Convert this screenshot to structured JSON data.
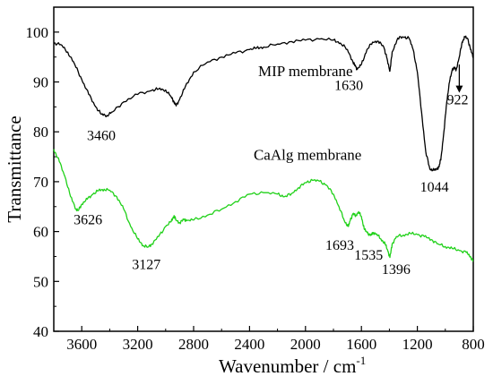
{
  "chart_data": {
    "type": "line",
    "xlabel": "Wavenumber / cm",
    "xlabel_sup": "-1",
    "ylabel": "Transmittance",
    "xlim": [
      3800,
      800
    ],
    "ylim": [
      40,
      105
    ],
    "x_reversed": true,
    "x_ticks": [
      3600,
      3200,
      2800,
      2400,
      2000,
      1600,
      1200,
      800
    ],
    "y_ticks": [
      40,
      50,
      60,
      70,
      80,
      90,
      100
    ],
    "grid": false,
    "series": [
      {
        "name": "MIP membrane",
        "color": "#000000",
        "points": [
          [
            3800,
            97.8
          ],
          [
            3750,
            97.5
          ],
          [
            3700,
            96
          ],
          [
            3650,
            93.5
          ],
          [
            3600,
            90.5
          ],
          [
            3550,
            87.5
          ],
          [
            3500,
            85
          ],
          [
            3460,
            83.5
          ],
          [
            3420,
            83.3
          ],
          [
            3380,
            84
          ],
          [
            3300,
            86
          ],
          [
            3200,
            87.5
          ],
          [
            3100,
            88.3
          ],
          [
            3050,
            88.6
          ],
          [
            3000,
            88.4
          ],
          [
            2960,
            87
          ],
          [
            2940,
            86
          ],
          [
            2925,
            85.2
          ],
          [
            2900,
            86.5
          ],
          [
            2860,
            89
          ],
          [
            2800,
            92
          ],
          [
            2700,
            94
          ],
          [
            2600,
            95
          ],
          [
            2500,
            95.8
          ],
          [
            2400,
            96.5
          ],
          [
            2350,
            96.8
          ],
          [
            2300,
            97
          ],
          [
            2200,
            97.6
          ],
          [
            2100,
            98.1
          ],
          [
            2000,
            98.4
          ],
          [
            1900,
            98.6
          ],
          [
            1800,
            98.4
          ],
          [
            1750,
            97.8
          ],
          [
            1700,
            96.5
          ],
          [
            1660,
            94
          ],
          [
            1640,
            93
          ],
          [
            1630,
            92.5
          ],
          [
            1600,
            93.5
          ],
          [
            1560,
            96.5
          ],
          [
            1520,
            98
          ],
          [
            1480,
            98.2
          ],
          [
            1440,
            97
          ],
          [
            1420,
            95
          ],
          [
            1400,
            92.5
          ],
          [
            1396,
            92.2
          ],
          [
            1380,
            96
          ],
          [
            1340,
            98.8
          ],
          [
            1300,
            99
          ],
          [
            1260,
            98.8
          ],
          [
            1230,
            96.5
          ],
          [
            1200,
            92
          ],
          [
            1170,
            84
          ],
          [
            1140,
            76
          ],
          [
            1110,
            72.5
          ],
          [
            1080,
            72.3
          ],
          [
            1060,
            72.5
          ],
          [
            1044,
            73
          ],
          [
            1030,
            75
          ],
          [
            1010,
            80
          ],
          [
            990,
            86
          ],
          [
            970,
            90
          ],
          [
            950,
            92.5
          ],
          [
            935,
            92.8
          ],
          [
            922,
            92.5
          ],
          [
            900,
            95
          ],
          [
            880,
            98
          ],
          [
            860,
            99
          ],
          [
            840,
            98.7
          ],
          [
            820,
            96.5
          ],
          [
            800,
            95
          ]
        ]
      },
      {
        "name": "CaAlg membrane",
        "color": "#21d11a",
        "points": [
          [
            3800,
            76.5
          ],
          [
            3760,
            74
          ],
          [
            3720,
            71
          ],
          [
            3680,
            67
          ],
          [
            3640,
            64.5
          ],
          [
            3626,
            64.2
          ],
          [
            3600,
            65.5
          ],
          [
            3560,
            66.5
          ],
          [
            3520,
            67.5
          ],
          [
            3480,
            68.2
          ],
          [
            3440,
            68.5
          ],
          [
            3400,
            68.3
          ],
          [
            3350,
            67
          ],
          [
            3300,
            64.5
          ],
          [
            3250,
            61
          ],
          [
            3200,
            58.5
          ],
          [
            3160,
            57.2
          ],
          [
            3127,
            56.9
          ],
          [
            3100,
            57.5
          ],
          [
            3050,
            59
          ],
          [
            3000,
            61
          ],
          [
            2960,
            62
          ],
          [
            2940,
            63.2
          ],
          [
            2925,
            62.3
          ],
          [
            2900,
            61.8
          ],
          [
            2870,
            62.4
          ],
          [
            2850,
            62.2
          ],
          [
            2800,
            62.3
          ],
          [
            2700,
            63.3
          ],
          [
            2600,
            64.5
          ],
          [
            2500,
            66
          ],
          [
            2400,
            67.5
          ],
          [
            2300,
            67.8
          ],
          [
            2200,
            67.5
          ],
          [
            2150,
            67
          ],
          [
            2100,
            67.6
          ],
          [
            2050,
            68.8
          ],
          [
            2000,
            69.8
          ],
          [
            1950,
            70.3
          ],
          [
            1900,
            70.1
          ],
          [
            1850,
            69.3
          ],
          [
            1800,
            67.5
          ],
          [
            1760,
            65
          ],
          [
            1720,
            62
          ],
          [
            1693,
            61
          ],
          [
            1680,
            62.2
          ],
          [
            1660,
            63.6
          ],
          [
            1640,
            63.2
          ],
          [
            1620,
            64
          ],
          [
            1600,
            63
          ],
          [
            1580,
            60.5
          ],
          [
            1560,
            59.8
          ],
          [
            1535,
            59.2
          ],
          [
            1515,
            59.8
          ],
          [
            1490,
            59.5
          ],
          [
            1460,
            58.5
          ],
          [
            1430,
            57.5
          ],
          [
            1410,
            56
          ],
          [
            1396,
            54.8
          ],
          [
            1380,
            57.5
          ],
          [
            1350,
            59
          ],
          [
            1300,
            59.3
          ],
          [
            1250,
            59.6
          ],
          [
            1200,
            59.4
          ],
          [
            1150,
            59
          ],
          [
            1100,
            58.4
          ],
          [
            1050,
            57.5
          ],
          [
            1000,
            57
          ],
          [
            950,
            56.6
          ],
          [
            900,
            56.2
          ],
          [
            850,
            55.8
          ],
          [
            820,
            55
          ],
          [
            800,
            54
          ]
        ]
      }
    ],
    "annotations": [
      {
        "text": "MIP membrane",
        "x": 2000,
        "y": 91.2
      },
      {
        "text": "3460",
        "x": 3460,
        "y": 78.3
      },
      {
        "text": "1630",
        "x": 1690,
        "y": 88.4
      },
      {
        "text": "922",
        "x": 912,
        "y": 85.5
      },
      {
        "text": "1044",
        "x": 1078,
        "y": 68
      },
      {
        "text": "CaAlg membrane",
        "x": 1985,
        "y": 74.4
      },
      {
        "text": "3626",
        "x": 3556,
        "y": 61.5
      },
      {
        "text": "3127",
        "x": 3138,
        "y": 52.5
      },
      {
        "text": "1693",
        "x": 1755,
        "y": 56.3
      },
      {
        "text": "1535",
        "x": 1548,
        "y": 54.4
      },
      {
        "text": "1396",
        "x": 1352,
        "y": 51.5
      }
    ],
    "arrow": {
      "x": 900,
      "y_from": 93.5,
      "y_to": 88.2
    }
  }
}
